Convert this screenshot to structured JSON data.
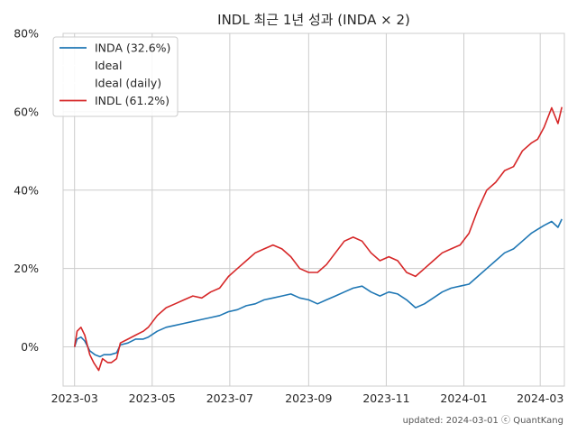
{
  "chart_data": {
    "type": "line",
    "title": "INDL 최근 1년 성과 (INDA × 2)",
    "xlabel": "",
    "ylabel": "",
    "x_range": [
      "2023-02-20",
      "2024-03-20"
    ],
    "ylim": [
      -10,
      80
    ],
    "x_ticks": [
      "2023-03",
      "2023-05",
      "2023-07",
      "2023-09",
      "2023-11",
      "2024-01",
      "2024-03"
    ],
    "y_ticks": [
      "0%",
      "20%",
      "40%",
      "60%",
      "80%"
    ],
    "y_tick_values": [
      0,
      20,
      40,
      60,
      80
    ],
    "grid": true,
    "legend_position": "top-left",
    "series": [
      {
        "name": "INDA (32.6%)",
        "color": "#1f77b4",
        "points": [
          [
            "2023-03-01",
            0
          ],
          [
            "2023-03-03",
            2
          ],
          [
            "2023-03-06",
            2.5
          ],
          [
            "2023-03-09",
            1.5
          ],
          [
            "2023-03-13",
            -1
          ],
          [
            "2023-03-17",
            -2
          ],
          [
            "2023-03-21",
            -2.5
          ],
          [
            "2023-03-24",
            -2
          ],
          [
            "2023-03-29",
            -2
          ],
          [
            "2023-04-03",
            -1.5
          ],
          [
            "2023-04-06",
            0.5
          ],
          [
            "2023-04-12",
            1
          ],
          [
            "2023-04-18",
            2
          ],
          [
            "2023-04-24",
            2
          ],
          [
            "2023-04-28",
            2.5
          ],
          [
            "2023-05-05",
            4
          ],
          [
            "2023-05-12",
            5
          ],
          [
            "2023-05-19",
            5.5
          ],
          [
            "2023-05-26",
            6
          ],
          [
            "2023-06-02",
            6.5
          ],
          [
            "2023-06-09",
            7
          ],
          [
            "2023-06-16",
            7.5
          ],
          [
            "2023-06-23",
            8
          ],
          [
            "2023-06-30",
            9
          ],
          [
            "2023-07-07",
            9.5
          ],
          [
            "2023-07-14",
            10.5
          ],
          [
            "2023-07-21",
            11
          ],
          [
            "2023-07-28",
            12
          ],
          [
            "2023-08-04",
            12.5
          ],
          [
            "2023-08-11",
            13
          ],
          [
            "2023-08-18",
            13.5
          ],
          [
            "2023-08-25",
            12.5
          ],
          [
            "2023-09-01",
            12
          ],
          [
            "2023-09-08",
            11
          ],
          [
            "2023-09-15",
            12
          ],
          [
            "2023-09-22",
            13
          ],
          [
            "2023-09-29",
            14
          ],
          [
            "2023-10-06",
            15
          ],
          [
            "2023-10-13",
            15.5
          ],
          [
            "2023-10-20",
            14
          ],
          [
            "2023-10-27",
            13
          ],
          [
            "2023-11-03",
            14
          ],
          [
            "2023-11-10",
            13.5
          ],
          [
            "2023-11-17",
            12
          ],
          [
            "2023-11-24",
            10
          ],
          [
            "2023-12-01",
            11
          ],
          [
            "2023-12-08",
            12.5
          ],
          [
            "2023-12-15",
            14
          ],
          [
            "2023-12-22",
            15
          ],
          [
            "2023-12-29",
            15.5
          ],
          [
            "2024-01-05",
            16
          ],
          [
            "2024-01-12",
            18
          ],
          [
            "2024-01-19",
            20
          ],
          [
            "2024-01-26",
            22
          ],
          [
            "2024-02-02",
            24
          ],
          [
            "2024-02-09",
            25
          ],
          [
            "2024-02-16",
            27
          ],
          [
            "2024-02-23",
            29
          ],
          [
            "2024-02-28",
            30
          ],
          [
            "2024-03-04",
            31
          ],
          [
            "2024-03-10",
            32
          ],
          [
            "2024-03-15",
            30.5
          ],
          [
            "2024-03-18",
            32.6
          ]
        ]
      },
      {
        "name": "Ideal",
        "color": "#ffffff",
        "points": []
      },
      {
        "name": "Ideal (daily)",
        "color": "#ffffff",
        "points": []
      },
      {
        "name": "INDL (61.2%)",
        "color": "#d62728",
        "points": [
          [
            "2023-03-01",
            0
          ],
          [
            "2023-03-03",
            4
          ],
          [
            "2023-03-06",
            5
          ],
          [
            "2023-03-09",
            3
          ],
          [
            "2023-03-13",
            -2
          ],
          [
            "2023-03-16",
            -4
          ],
          [
            "2023-03-20",
            -6
          ],
          [
            "2023-03-23",
            -3
          ],
          [
            "2023-03-27",
            -4
          ],
          [
            "2023-03-30",
            -4
          ],
          [
            "2023-04-03",
            -3
          ],
          [
            "2023-04-06",
            1
          ],
          [
            "2023-04-12",
            2
          ],
          [
            "2023-04-18",
            3
          ],
          [
            "2023-04-24",
            4
          ],
          [
            "2023-04-28",
            5
          ],
          [
            "2023-05-05",
            8
          ],
          [
            "2023-05-12",
            10
          ],
          [
            "2023-05-19",
            11
          ],
          [
            "2023-05-26",
            12
          ],
          [
            "2023-06-02",
            13
          ],
          [
            "2023-06-09",
            12.5
          ],
          [
            "2023-06-16",
            14
          ],
          [
            "2023-06-23",
            15
          ],
          [
            "2023-06-30",
            18
          ],
          [
            "2023-07-07",
            20
          ],
          [
            "2023-07-14",
            22
          ],
          [
            "2023-07-21",
            24
          ],
          [
            "2023-07-28",
            25
          ],
          [
            "2023-08-04",
            26
          ],
          [
            "2023-08-11",
            25
          ],
          [
            "2023-08-18",
            23
          ],
          [
            "2023-08-25",
            20
          ],
          [
            "2023-09-01",
            19
          ],
          [
            "2023-09-08",
            19
          ],
          [
            "2023-09-15",
            21
          ],
          [
            "2023-09-22",
            24
          ],
          [
            "2023-09-29",
            27
          ],
          [
            "2023-10-06",
            28
          ],
          [
            "2023-10-13",
            27
          ],
          [
            "2023-10-20",
            24
          ],
          [
            "2023-10-27",
            22
          ],
          [
            "2023-11-03",
            23
          ],
          [
            "2023-11-10",
            22
          ],
          [
            "2023-11-17",
            19
          ],
          [
            "2023-11-24",
            18
          ],
          [
            "2023-12-01",
            20
          ],
          [
            "2023-12-08",
            22
          ],
          [
            "2023-12-15",
            24
          ],
          [
            "2023-12-22",
            25
          ],
          [
            "2023-12-29",
            26
          ],
          [
            "2024-01-05",
            29
          ],
          [
            "2024-01-12",
            35
          ],
          [
            "2024-01-19",
            40
          ],
          [
            "2024-01-26",
            42
          ],
          [
            "2024-02-02",
            45
          ],
          [
            "2024-02-09",
            46
          ],
          [
            "2024-02-16",
            50
          ],
          [
            "2024-02-23",
            52
          ],
          [
            "2024-02-28",
            53
          ],
          [
            "2024-03-04",
            56
          ],
          [
            "2024-03-10",
            61
          ],
          [
            "2024-03-15",
            57
          ],
          [
            "2024-03-18",
            61.2
          ]
        ]
      }
    ]
  },
  "footer": "updated: 2024-03-01 ⓒ QuantKang"
}
